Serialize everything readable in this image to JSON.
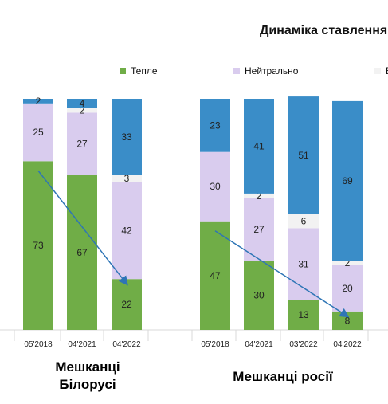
{
  "chart_data": {
    "type": "bar",
    "stacked": true,
    "title": "Динаміка ставлення",
    "legend": {
      "placement": "top",
      "visible_entries": [
        "Тепле",
        "Нейтрально",
        "В"
      ]
    },
    "groups": [
      {
        "label_line1": "Мешканці",
        "label_line2": "Білорусі",
        "categories": [
          "05'2018",
          "04'2021",
          "04'2022"
        ],
        "series": [
          {
            "name": "Тепле",
            "values": [
              73,
              67,
              22
            ]
          },
          {
            "name": "Нейтрально",
            "values": [
              25,
              27,
              42
            ]
          },
          {
            "name": "В",
            "values": [
              0,
              2,
              3
            ]
          },
          {
            "name": "",
            "values": [
              2,
              4,
              33
            ]
          }
        ],
        "trend": "decreasing"
      },
      {
        "label_line1": "Мешканці росії",
        "label_line2": "",
        "categories": [
          "05'2018",
          "04'2021",
          "03'2022",
          "04'2022"
        ],
        "series": [
          {
            "name": "Тепле",
            "values": [
              47,
              30,
              13,
              8
            ]
          },
          {
            "name": "Нейтрально",
            "values": [
              30,
              27,
              31,
              20
            ]
          },
          {
            "name": "В",
            "values": [
              0,
              2,
              6,
              2
            ]
          },
          {
            "name": "",
            "values": [
              23,
              41,
              51,
              69
            ]
          }
        ],
        "trend": "decreasing"
      }
    ],
    "colors": {
      "warm": "#70AD47",
      "neutral": "#D9CCEE",
      "light": "#F2F2F2",
      "negative": "#3A8DC8",
      "trend_arrow": "#2E75B6"
    }
  }
}
